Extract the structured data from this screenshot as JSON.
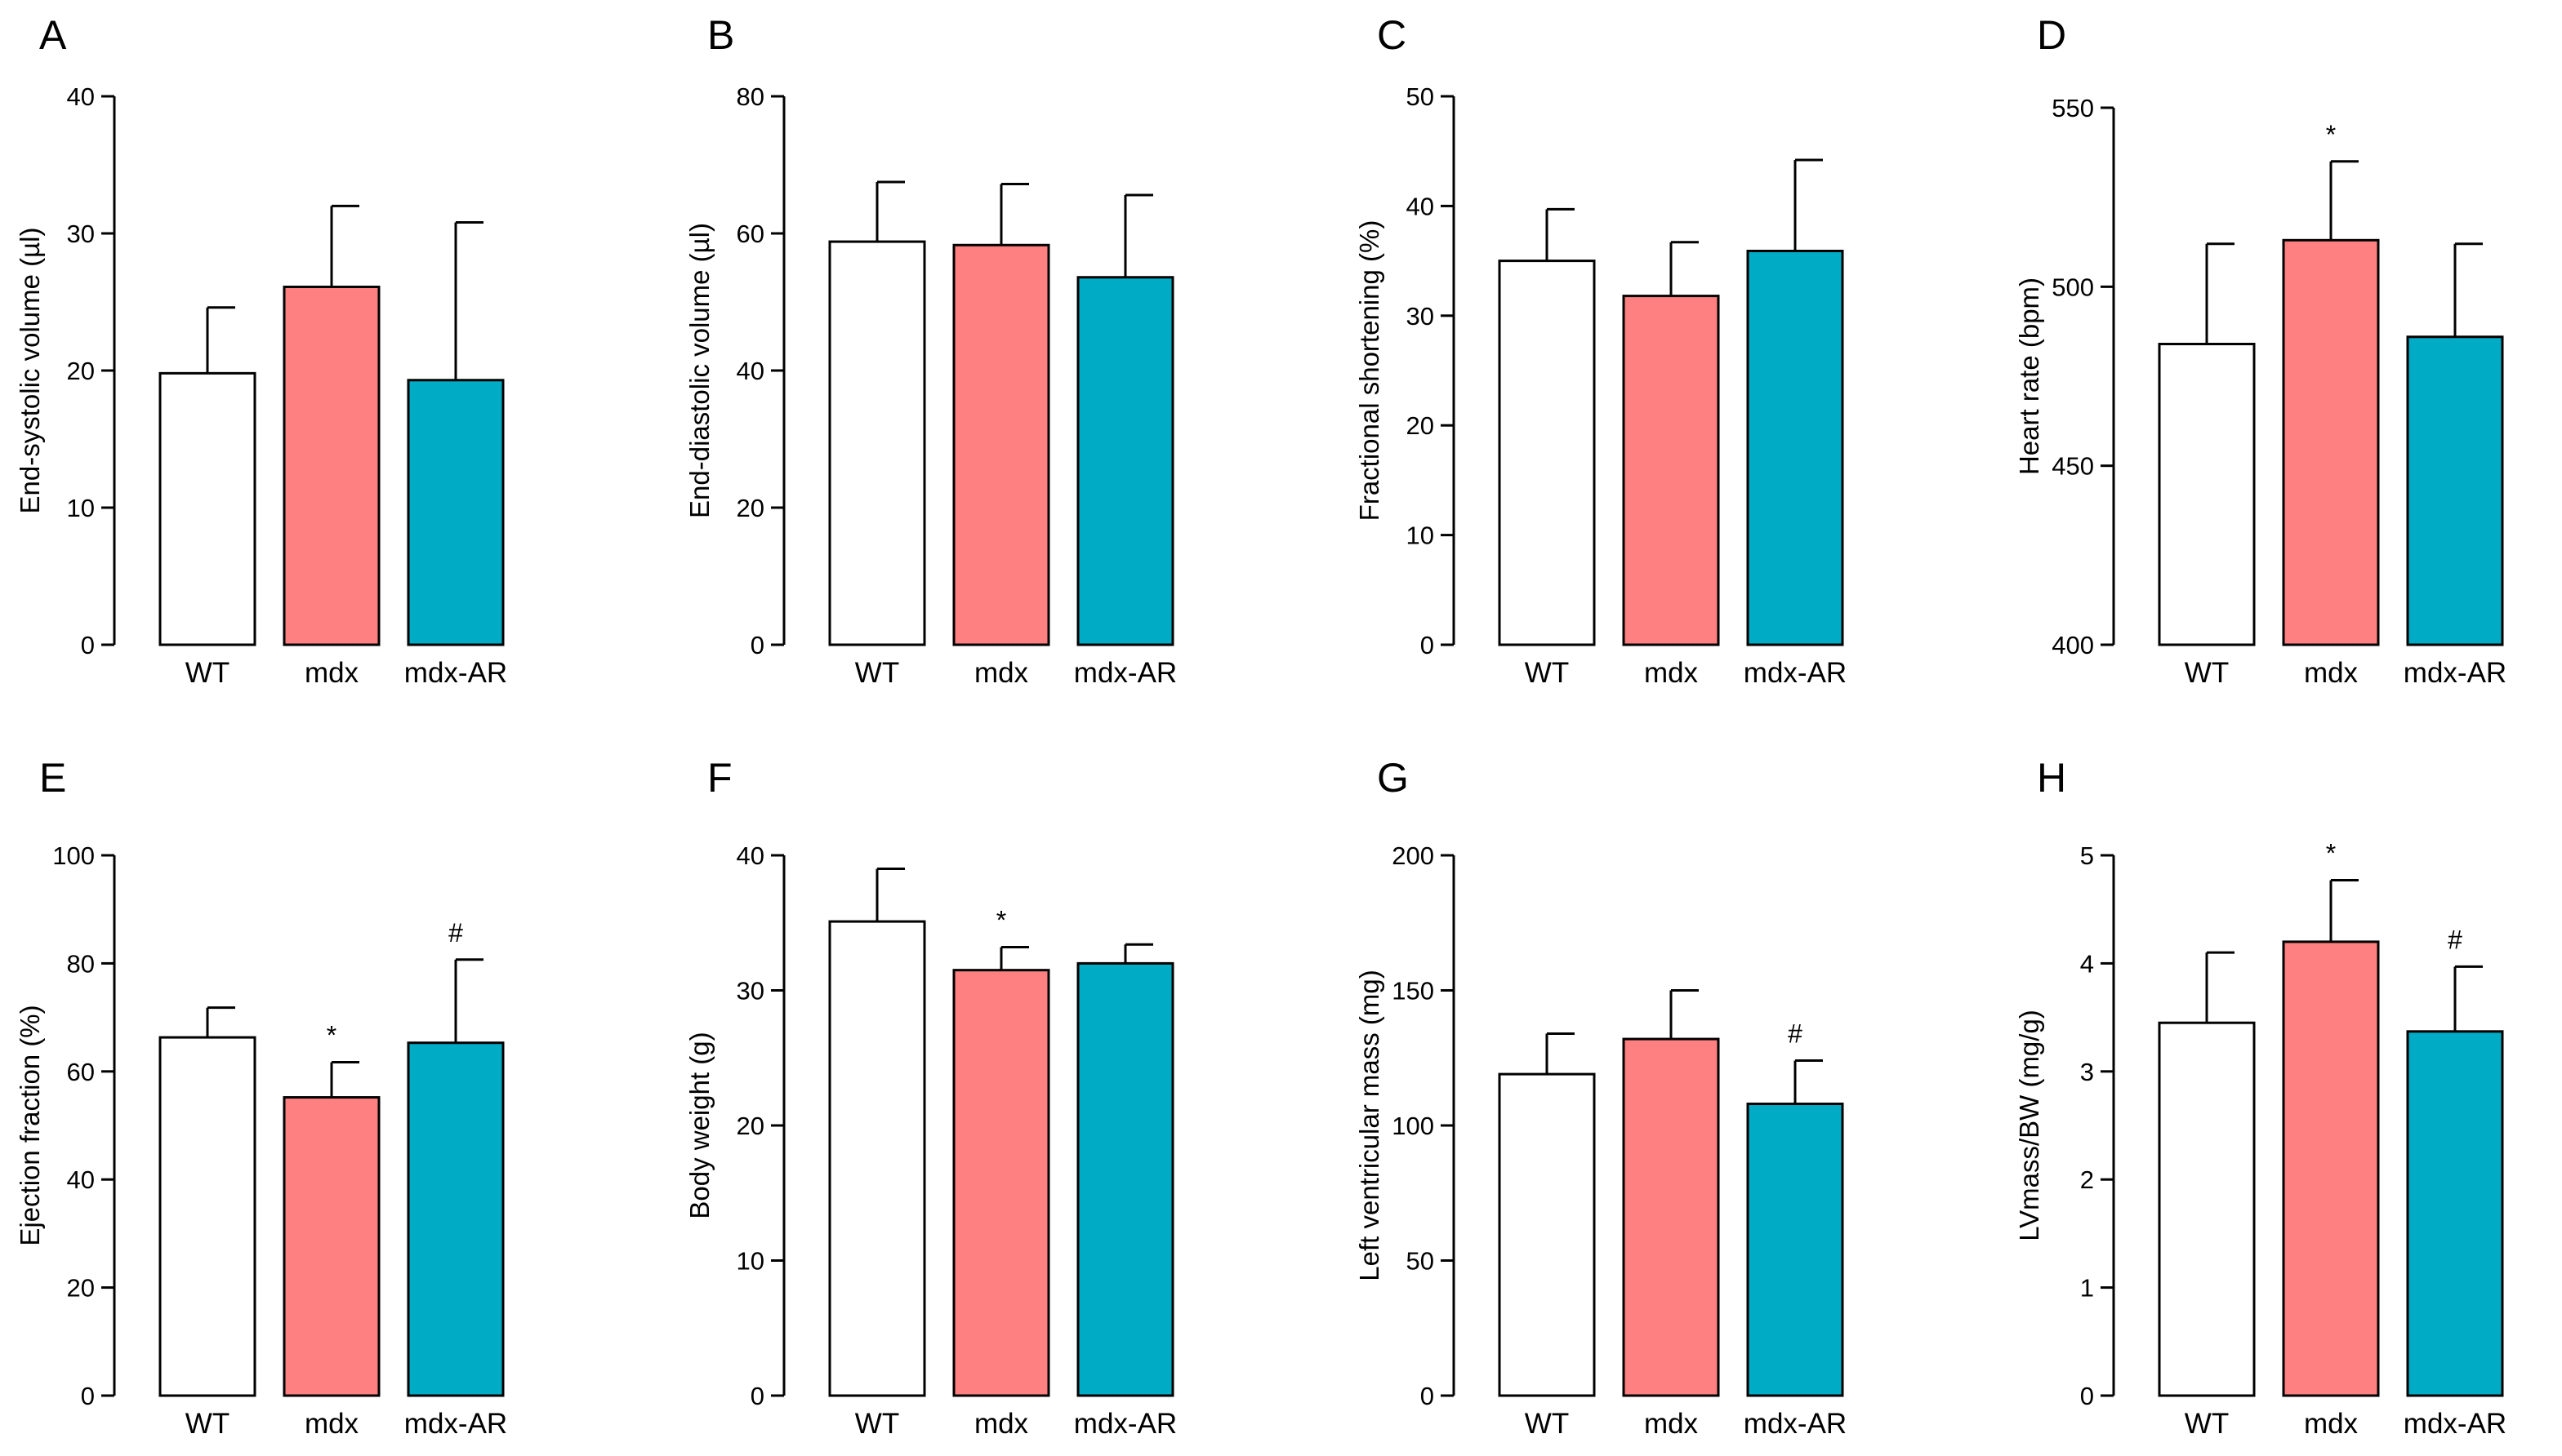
{
  "figure": {
    "categories": [
      "WT",
      "mdx",
      "mdx-AR"
    ],
    "series_colors": [
      "#ffffff",
      "#ff8080",
      "#00abc6"
    ]
  },
  "chart_data": [
    {
      "panel": "A",
      "type": "bar",
      "categories": [
        "WT",
        "mdx",
        "mdx-AR"
      ],
      "values": [
        19.8,
        26.1,
        19.3
      ],
      "errors": [
        4.8,
        5.9,
        11.5
      ],
      "annotations": [
        "",
        "",
        ""
      ],
      "ylabel": "End-systolic volume (µl)",
      "ylim": [
        0,
        40
      ],
      "yticks": [
        0,
        10,
        20,
        30,
        40
      ]
    },
    {
      "panel": "B",
      "type": "bar",
      "categories": [
        "WT",
        "mdx",
        "mdx-AR"
      ],
      "values": [
        58.8,
        58.3,
        53.6
      ],
      "errors": [
        8.7,
        8.9,
        12.0
      ],
      "annotations": [
        "",
        "",
        ""
      ],
      "ylabel": "End-diastolic volume (µl)",
      "ylim": [
        0,
        80
      ],
      "yticks": [
        0,
        20,
        40,
        60,
        80
      ]
    },
    {
      "panel": "C",
      "type": "bar",
      "categories": [
        "WT",
        "mdx",
        "mdx-AR"
      ],
      "values": [
        35.0,
        31.8,
        35.9
      ],
      "errors": [
        4.7,
        4.9,
        8.3
      ],
      "annotations": [
        "",
        "",
        ""
      ],
      "ylabel": "Fractional shortening (%)",
      "ylim": [
        0,
        50
      ],
      "yticks": [
        0,
        10,
        20,
        30,
        40,
        50
      ]
    },
    {
      "panel": "D",
      "type": "bar",
      "categories": [
        "WT",
        "mdx",
        "mdx-AR"
      ],
      "values": [
        484,
        513,
        486
      ],
      "errors": [
        28,
        22,
        26
      ],
      "annotations": [
        "",
        "*",
        ""
      ],
      "ylabel": "Heart rate (bpm)",
      "ylim": [
        400,
        550
      ],
      "yticks": [
        400,
        450,
        500,
        550
      ]
    },
    {
      "panel": "E",
      "type": "bar",
      "categories": [
        "WT",
        "mdx",
        "mdx-AR"
      ],
      "values": [
        66.3,
        55.2,
        65.3
      ],
      "errors": [
        5.5,
        6.5,
        15.4
      ],
      "annotations": [
        "",
        "*",
        "#"
      ],
      "ylabel": "Ejection fraction (%)",
      "ylim": [
        0,
        100
      ],
      "yticks": [
        0,
        20,
        40,
        60,
        80,
        100
      ]
    },
    {
      "panel": "F",
      "type": "bar",
      "categories": [
        "WT",
        "mdx",
        "mdx-AR"
      ],
      "values": [
        35.1,
        31.5,
        32.0
      ],
      "errors": [
        3.9,
        1.7,
        1.4
      ],
      "annotations": [
        "",
        "*",
        ""
      ],
      "ylabel": "Body weight (g)",
      "ylim": [
        0,
        40
      ],
      "yticks": [
        0,
        10,
        20,
        30,
        40
      ]
    },
    {
      "panel": "G",
      "type": "bar",
      "categories": [
        "WT",
        "mdx",
        "mdx-AR"
      ],
      "values": [
        119,
        132,
        108
      ],
      "errors": [
        15,
        18,
        16
      ],
      "annotations": [
        "",
        "",
        "#"
      ],
      "ylabel": "Left ventricular mass (mg)",
      "ylim": [
        0,
        200
      ],
      "yticks": [
        0,
        50,
        100,
        150,
        200
      ]
    },
    {
      "panel": "H",
      "type": "bar",
      "categories": [
        "WT",
        "mdx",
        "mdx-AR"
      ],
      "values": [
        3.45,
        4.2,
        3.37
      ],
      "errors": [
        0.65,
        0.57,
        0.6
      ],
      "annotations": [
        "",
        "*",
        "#"
      ],
      "ylabel": "LVmass/BW (mg/g)",
      "ylim": [
        0,
        5
      ],
      "yticks": [
        0,
        1,
        2,
        3,
        4,
        5
      ]
    }
  ]
}
